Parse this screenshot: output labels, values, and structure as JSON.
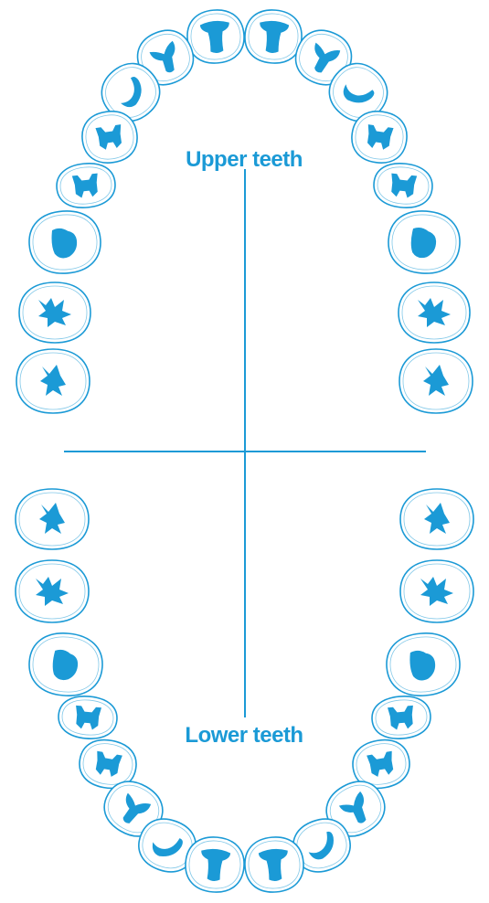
{
  "labels": {
    "upper": "Upper teeth",
    "lower": "Lower teeth"
  },
  "colors": {
    "primary": "#1b9ad6",
    "background": "#ffffff"
  },
  "arches": {
    "upper": {
      "tooth_count": 16
    },
    "lower": {
      "tooth_count": 16
    }
  }
}
